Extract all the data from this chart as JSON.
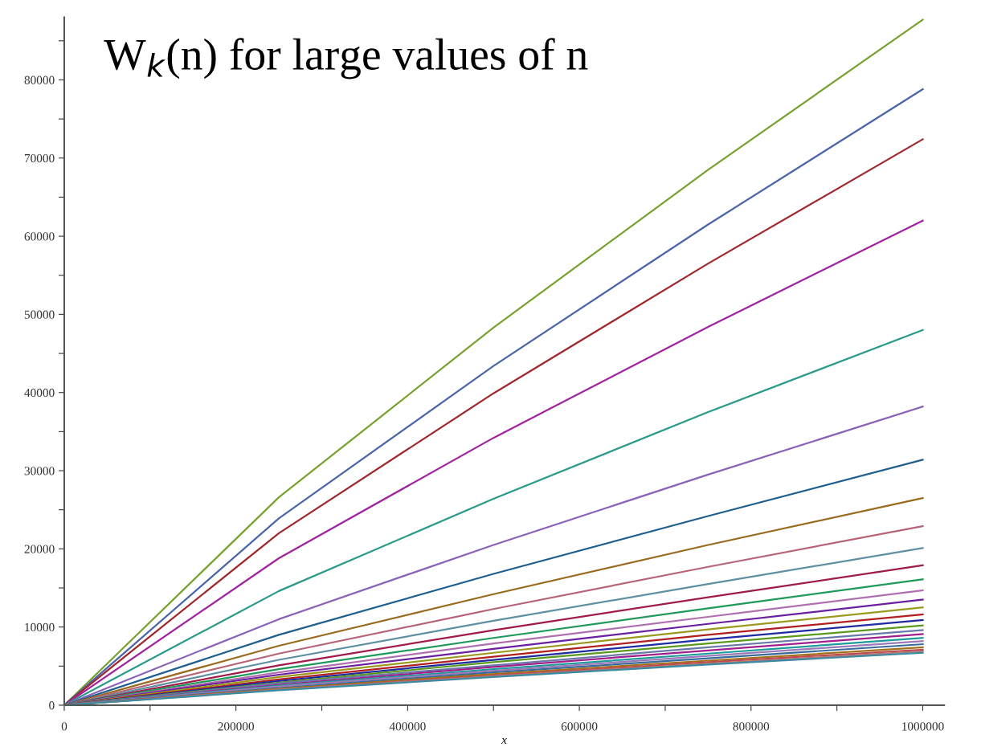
{
  "chart_data": {
    "type": "line",
    "title": "W$_{k}$(n) for large values of n",
    "xlabel": "x",
    "x": [
      0,
      250000,
      500000,
      750000,
      1000000
    ],
    "xlim": [
      0,
      1025000
    ],
    "ylim": [
      0,
      88000
    ],
    "xticks": [
      0,
      {
        "value": 100000,
        "label": null
      },
      200000,
      {
        "value": 300000,
        "label": null
      },
      400000,
      {
        "value": 500000,
        "label": null
      },
      600000,
      {
        "value": 700000,
        "label": null
      },
      800000,
      {
        "value": 900000,
        "label": null
      },
      1000000
    ],
    "yticks": [
      0,
      {
        "value": 5000,
        "label": null
      },
      10000,
      {
        "value": 15000,
        "label": null
      },
      20000,
      {
        "value": 25000,
        "label": null
      },
      30000,
      {
        "value": 35000,
        "label": null
      },
      40000,
      {
        "value": 45000,
        "label": null
      },
      50000,
      {
        "value": 55000,
        "label": null
      },
      60000,
      {
        "value": 65000,
        "label": null
      },
      70000,
      {
        "value": 75000,
        "label": null
      },
      80000,
      {
        "value": 85000,
        "label": null
      }
    ],
    "grid": false,
    "marker": "none",
    "line_style": "solid",
    "series": [
      {
        "color": "#78a22f",
        "values": [
          0,
          26600,
          48300,
          68500,
          87700
        ]
      },
      {
        "color": "#4a65a8",
        "values": [
          0,
          23900,
          43400,
          61500,
          78800
        ]
      },
      {
        "color": "#a0282d",
        "values": [
          0,
          22000,
          39900,
          56500,
          72400
        ]
      },
      {
        "color": "#a0239f",
        "values": [
          0,
          18800,
          34200,
          48400,
          62000
        ]
      },
      {
        "color": "#2a9a8a",
        "values": [
          0,
          14600,
          26400,
          37500,
          48000
        ]
      },
      {
        "color": "#8a62b8",
        "values": [
          0,
          11000,
          20500,
          29500,
          38200
        ]
      },
      {
        "color": "#1f5f8f",
        "values": [
          0,
          9000,
          16800,
          24200,
          31400
        ]
      },
      {
        "color": "#9a6a1f",
        "values": [
          0,
          7600,
          14200,
          20500,
          26500
        ]
      },
      {
        "color": "#b76478",
        "values": [
          0,
          6600,
          12300,
          17700,
          22900
        ]
      },
      {
        "color": "#5f8fa3",
        "values": [
          0,
          5800,
          10800,
          15500,
          20100
        ]
      },
      {
        "color": "#a01b4a",
        "values": [
          0,
          5100,
          9600,
          13800,
          17900
        ]
      },
      {
        "color": "#1f9a5a",
        "values": [
          0,
          4600,
          8600,
          12400,
          16100
        ]
      },
      {
        "color": "#b070b0",
        "values": [
          0,
          4200,
          7900,
          11300,
          14700
        ]
      },
      {
        "color": "#6a1fa0",
        "values": [
          0,
          3900,
          7200,
          10400,
          13500
        ]
      },
      {
        "color": "#9a9a1f",
        "values": [
          0,
          3600,
          6700,
          9700,
          12500
        ]
      },
      {
        "color": "#b02020",
        "values": [
          0,
          3300,
          6200,
          9000,
          11600
        ]
      },
      {
        "color": "#1f2aa0",
        "values": [
          0,
          3100,
          5800,
          8400,
          10900
        ]
      },
      {
        "color": "#5a9a1f",
        "values": [
          0,
          2900,
          5500,
          7900,
          10200
        ]
      },
      {
        "color": "#6a7aa8",
        "values": [
          0,
          2800,
          5100,
          7400,
          9600
        ]
      },
      {
        "color": "#a01f8a",
        "values": [
          0,
          2600,
          4900,
          7000,
          9100
        ]
      },
      {
        "color": "#1f9a9a",
        "values": [
          0,
          2500,
          4600,
          6600,
          8600
        ]
      },
      {
        "color": "#9a7ab8",
        "values": [
          0,
          2400,
          4400,
          6300,
          8200
        ]
      },
      {
        "color": "#3a6a9a",
        "values": [
          0,
          2200,
          4200,
          6000,
          7800
        ]
      },
      {
        "color": "#a0701f",
        "values": [
          0,
          2100,
          4000,
          5700,
          7400
        ]
      },
      {
        "color": "#c04a4a",
        "values": [
          0,
          2000,
          3800,
          5500,
          7100
        ]
      },
      {
        "color": "#b07a7a",
        "values": [
          0,
          2000,
          3700,
          5300,
          6900
        ]
      },
      {
        "color": "#3a8aa0",
        "values": [
          0,
          1900,
          3600,
          5200,
          6700
        ]
      }
    ]
  }
}
